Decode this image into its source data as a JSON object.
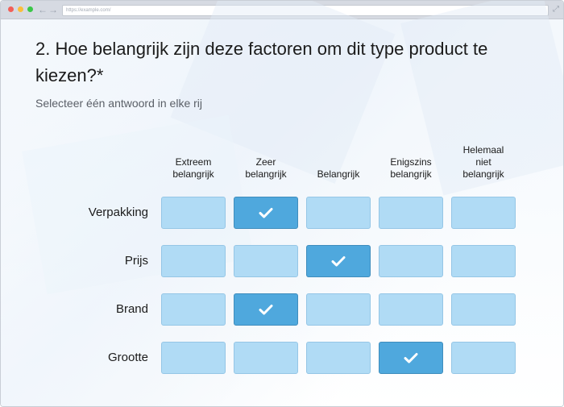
{
  "browser": {
    "url": "https://example.com/"
  },
  "question": {
    "title": "2. Hoe belangrijk zijn deze factoren om dit type product te kiezen?*",
    "instruction": "Selecteer één antwoord in elke rij"
  },
  "columns": [
    {
      "label_lines": [
        "Extreem",
        "belangrijk"
      ]
    },
    {
      "label_lines": [
        "Zeer",
        "belangrijk"
      ]
    },
    {
      "label_lines": [
        "Belangrijk"
      ]
    },
    {
      "label_lines": [
        "Enigszins",
        "belangrijk"
      ]
    },
    {
      "label_lines": [
        "Helemaal",
        "niet",
        "belangrijk"
      ]
    }
  ],
  "rows": [
    {
      "label": "Verpakking",
      "selected_index": 1
    },
    {
      "label": "Prijs",
      "selected_index": 2
    },
    {
      "label": "Brand",
      "selected_index": 1
    },
    {
      "label": "Grootte",
      "selected_index": 3
    }
  ],
  "colors": {
    "cell_unselected": "#b0dbf5",
    "cell_selected": "#4fa8dd",
    "check": "#ffffff"
  },
  "icons": {
    "check": "check-icon"
  }
}
